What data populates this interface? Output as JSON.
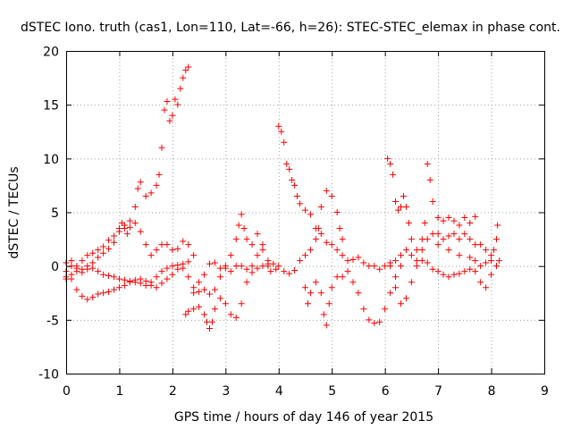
{
  "chart_data": {
    "type": "scatter",
    "title": "dSTEC Iono. truth (cas1, Lon=110, Lat=-66, h=26): STEC-STEC_elemax in phase cont.",
    "xlabel": "GPS time / hours of day 146 of year 2015",
    "ylabel": "dSTEC  / TECUs",
    "xlim": [
      0,
      9
    ],
    "ylim": [
      -10,
      20
    ],
    "xticks": [
      "0",
      "1",
      "2",
      "3",
      "4",
      "5",
      "6",
      "7",
      "8",
      "9"
    ],
    "yticks": [
      "-10",
      "-5",
      "0",
      "5",
      "10",
      "15",
      "20"
    ],
    "grid": true,
    "marker": "+",
    "color": "#ff0000",
    "series": [
      {
        "points": [
          [
            0.0,
            -0.5
          ],
          [
            0.1,
            -1.2
          ],
          [
            0.2,
            -2.2
          ],
          [
            0.3,
            -2.8
          ],
          [
            0.4,
            -3.1
          ],
          [
            0.5,
            -2.9
          ],
          [
            0.6,
            -2.6
          ],
          [
            0.7,
            -2.5
          ],
          [
            0.8,
            -2.4
          ],
          [
            0.9,
            -2.2
          ],
          [
            1.0,
            -2.0
          ],
          [
            1.1,
            -1.8
          ],
          [
            1.2,
            -1.5
          ],
          [
            1.3,
            -1.3
          ],
          [
            1.4,
            -1.2
          ],
          [
            1.5,
            -1.4
          ],
          [
            1.6,
            -1.8
          ],
          [
            1.7,
            -2.0
          ],
          [
            1.8,
            -1.6
          ],
          [
            1.9,
            -1.2
          ],
          [
            2.0,
            -0.8
          ],
          [
            2.1,
            -0.3
          ],
          [
            2.2,
            0.2
          ],
          [
            2.3,
            0.4
          ]
        ]
      },
      {
        "points": [
          [
            0.0,
            0.3
          ],
          [
            0.1,
            0.5
          ],
          [
            0.2,
            0.0
          ],
          [
            0.3,
            -0.6
          ],
          [
            0.4,
            -0.3
          ],
          [
            0.5,
            0.3
          ],
          [
            0.6,
            0.8
          ],
          [
            0.7,
            1.2
          ],
          [
            0.8,
            1.6
          ],
          [
            0.9,
            2.2
          ],
          [
            1.0,
            3.2
          ],
          [
            1.05,
            4.0
          ],
          [
            1.1,
            3.5
          ],
          [
            1.15,
            3.0
          ],
          [
            1.2,
            3.6
          ],
          [
            1.3,
            5.5
          ],
          [
            1.35,
            7.2
          ],
          [
            1.4,
            7.8
          ],
          [
            1.5,
            6.5
          ],
          [
            1.6,
            6.8
          ],
          [
            1.7,
            7.5
          ],
          [
            1.75,
            8.5
          ],
          [
            1.8,
            11.0
          ],
          [
            1.85,
            14.5
          ],
          [
            1.9,
            15.3
          ],
          [
            1.95,
            13.5
          ],
          [
            2.0,
            14.0
          ],
          [
            2.05,
            15.5
          ],
          [
            2.1,
            15.0
          ],
          [
            2.15,
            16.5
          ],
          [
            2.2,
            17.5
          ],
          [
            2.25,
            18.2
          ],
          [
            2.3,
            18.5
          ]
        ]
      },
      {
        "points": [
          [
            0.0,
            -1.0
          ],
          [
            0.1,
            0.0
          ],
          [
            0.2,
            -0.2
          ],
          [
            0.3,
            0.5
          ],
          [
            0.4,
            1.0
          ],
          [
            0.5,
            1.2
          ],
          [
            0.6,
            1.5
          ],
          [
            0.7,
            1.8
          ],
          [
            0.8,
            2.4
          ],
          [
            0.9,
            2.8
          ],
          [
            1.0,
            3.5
          ],
          [
            1.1,
            3.8
          ],
          [
            1.2,
            4.2
          ],
          [
            1.3,
            4.0
          ],
          [
            1.4,
            3.2
          ],
          [
            1.5,
            2.0
          ],
          [
            1.6,
            1.0
          ],
          [
            1.7,
            1.5
          ],
          [
            1.8,
            2.0
          ],
          [
            1.9,
            2.0
          ],
          [
            2.0,
            1.5
          ],
          [
            2.1,
            1.6
          ],
          [
            2.2,
            2.3
          ],
          [
            2.3,
            2.0
          ],
          [
            2.4,
            1.0
          ]
        ]
      },
      {
        "points": [
          [
            0.0,
            -1.2
          ],
          [
            0.1,
            -0.8
          ],
          [
            0.2,
            -0.5
          ],
          [
            0.3,
            -0.3
          ],
          [
            0.4,
            0.0
          ],
          [
            0.5,
            -0.2
          ],
          [
            0.6,
            -0.5
          ],
          [
            0.7,
            -0.8
          ],
          [
            0.8,
            -0.9
          ],
          [
            0.9,
            -1.0
          ],
          [
            1.0,
            -1.2
          ],
          [
            1.1,
            -1.3
          ],
          [
            1.2,
            -1.4
          ],
          [
            1.3,
            -1.5
          ],
          [
            1.4,
            -1.6
          ],
          [
            1.5,
            -1.8
          ],
          [
            1.6,
            -1.5
          ],
          [
            1.7,
            -1.0
          ],
          [
            1.8,
            -0.5
          ],
          [
            1.9,
            -0.2
          ],
          [
            2.0,
            0.0
          ],
          [
            2.1,
            0.1
          ],
          [
            2.2,
            -0.2
          ],
          [
            2.3,
            -1.0
          ],
          [
            2.4,
            -2.0
          ]
        ]
      },
      {
        "points": [
          [
            2.25,
            -4.5
          ],
          [
            2.3,
            -4.2
          ],
          [
            2.4,
            -4.0
          ],
          [
            2.5,
            -3.8
          ],
          [
            2.6,
            -4.5
          ],
          [
            2.65,
            -5.2
          ],
          [
            2.7,
            -5.8
          ],
          [
            2.75,
            -5.2
          ],
          [
            2.8,
            -4.0
          ],
          [
            2.9,
            -3.0
          ],
          [
            3.0,
            -3.5
          ],
          [
            3.1,
            -4.5
          ],
          [
            3.2,
            -4.8
          ],
          [
            3.3,
            -3.5
          ],
          [
            3.4,
            -1.5
          ],
          [
            3.5,
            0.0
          ],
          [
            3.6,
            1.0
          ],
          [
            3.7,
            1.5
          ],
          [
            3.8,
            0.5
          ]
        ]
      },
      {
        "points": [
          [
            2.4,
            -2.5
          ],
          [
            2.5,
            -2.4
          ],
          [
            2.6,
            -2.2
          ],
          [
            2.7,
            -2.6
          ],
          [
            2.8,
            -2.2
          ],
          [
            2.9,
            -1.0
          ],
          [
            3.0,
            -0.2
          ],
          [
            3.1,
            1.0
          ],
          [
            3.2,
            2.5
          ],
          [
            3.25,
            3.8
          ],
          [
            3.3,
            4.8
          ],
          [
            3.35,
            3.5
          ],
          [
            3.4,
            2.5
          ],
          [
            3.5,
            2.0
          ],
          [
            3.6,
            3.0
          ],
          [
            3.7,
            2.0
          ],
          [
            3.8,
            0.2
          ]
        ]
      },
      {
        "points": [
          [
            2.5,
            -1.5
          ],
          [
            2.6,
            -0.8
          ],
          [
            2.7,
            0.2
          ],
          [
            2.8,
            0.3
          ],
          [
            2.9,
            -0.2
          ],
          [
            3.0,
            0.0
          ],
          [
            3.1,
            -0.5
          ],
          [
            3.2,
            0.0
          ],
          [
            3.3,
            0.0
          ],
          [
            3.4,
            -0.3
          ],
          [
            3.5,
            -0.6
          ],
          [
            3.6,
            -0.2
          ],
          [
            3.7,
            0.0
          ],
          [
            3.8,
            0.0
          ],
          [
            3.9,
            0.2
          ],
          [
            4.0,
            0.0
          ],
          [
            4.1,
            -0.5
          ],
          [
            4.2,
            -0.7
          ],
          [
            4.3,
            -0.4
          ]
        ]
      },
      {
        "points": [
          [
            3.85,
            -0.5
          ],
          [
            3.95,
            -0.3
          ],
          [
            4.0,
            13.0
          ],
          [
            4.05,
            12.5
          ],
          [
            4.1,
            11.5
          ],
          [
            4.15,
            9.5
          ],
          [
            4.2,
            9.0
          ],
          [
            4.25,
            8.0
          ],
          [
            4.3,
            7.5
          ],
          [
            4.35,
            6.5
          ],
          [
            4.4,
            5.8
          ],
          [
            4.5,
            5.2
          ],
          [
            4.6,
            4.8
          ],
          [
            4.7,
            3.5
          ],
          [
            4.8,
            5.5
          ],
          [
            4.9,
            7.0
          ],
          [
            5.0,
            6.5
          ],
          [
            5.1,
            5.0
          ],
          [
            5.15,
            3.5
          ],
          [
            5.2,
            2.5
          ]
        ]
      },
      {
        "points": [
          [
            4.4,
            0.5
          ],
          [
            4.5,
            1.0
          ],
          [
            4.6,
            1.5
          ],
          [
            4.7,
            2.5
          ],
          [
            4.75,
            3.5
          ],
          [
            4.8,
            3.0
          ],
          [
            4.9,
            2.2
          ],
          [
            5.0,
            2.0
          ],
          [
            5.1,
            1.5
          ],
          [
            5.2,
            1.0
          ],
          [
            5.3,
            0.5
          ],
          [
            5.4,
            0.6
          ],
          [
            5.5,
            0.8
          ],
          [
            5.6,
            0.3
          ],
          [
            5.7,
            0.0
          ],
          [
            5.8,
            0.0
          ],
          [
            5.9,
            -0.3
          ],
          [
            6.0,
            0.0
          ],
          [
            6.1,
            0.3
          ]
        ]
      },
      {
        "points": [
          [
            4.5,
            -2.0
          ],
          [
            4.55,
            -3.5
          ],
          [
            4.6,
            -2.5
          ],
          [
            4.7,
            -1.5
          ],
          [
            4.8,
            -2.5
          ],
          [
            4.85,
            -4.5
          ],
          [
            4.9,
            -5.5
          ],
          [
            4.95,
            -3.5
          ],
          [
            5.0,
            -2.0
          ],
          [
            5.1,
            -1.0
          ],
          [
            5.2,
            -1.0
          ],
          [
            5.3,
            -0.5
          ],
          [
            5.4,
            -1.5
          ],
          [
            5.5,
            -2.5
          ],
          [
            5.6,
            -4.0
          ],
          [
            5.7,
            -5.0
          ],
          [
            5.8,
            -5.3
          ],
          [
            5.9,
            -5.2
          ],
          [
            6.0,
            -4.0
          ],
          [
            6.1,
            -2.5
          ],
          [
            6.2,
            -1.0
          ],
          [
            6.3,
            0.0
          ]
        ]
      },
      {
        "points": [
          [
            6.05,
            10.0
          ],
          [
            6.1,
            9.5
          ],
          [
            6.15,
            8.5
          ],
          [
            6.2,
            6.0
          ],
          [
            6.25,
            5.2
          ],
          [
            6.3,
            5.5
          ],
          [
            6.35,
            6.5
          ],
          [
            6.4,
            5.5
          ],
          [
            6.45,
            4.0
          ],
          [
            6.5,
            2.5
          ],
          [
            6.6,
            1.5
          ],
          [
            6.7,
            2.5
          ],
          [
            6.75,
            4.0
          ],
          [
            6.8,
            9.5
          ],
          [
            6.85,
            8.0
          ],
          [
            6.9,
            6.0
          ],
          [
            7.0,
            4.5
          ],
          [
            7.1,
            4.2
          ],
          [
            7.2,
            4.5
          ],
          [
            7.3,
            4.2
          ],
          [
            7.4,
            3.8
          ],
          [
            7.5,
            4.5
          ],
          [
            7.6,
            4.0
          ],
          [
            7.7,
            4.6
          ]
        ]
      },
      {
        "points": [
          [
            6.1,
            0.0
          ],
          [
            6.2,
            0.5
          ],
          [
            6.3,
            1.0
          ],
          [
            6.4,
            1.5
          ],
          [
            6.5,
            1.0
          ],
          [
            6.6,
            0.5
          ],
          [
            6.7,
            1.5
          ],
          [
            6.8,
            2.5
          ],
          [
            6.9,
            3.0
          ],
          [
            7.0,
            3.0
          ],
          [
            7.1,
            2.5
          ],
          [
            7.2,
            2.8
          ],
          [
            7.3,
            3.0
          ],
          [
            7.4,
            2.5
          ],
          [
            7.5,
            3.0
          ],
          [
            7.6,
            2.5
          ],
          [
            7.7,
            2.0
          ],
          [
            7.8,
            2.0
          ],
          [
            7.9,
            1.5
          ],
          [
            8.0,
            1.0
          ]
        ]
      },
      {
        "points": [
          [
            6.2,
            -2.0
          ],
          [
            6.3,
            -3.5
          ],
          [
            6.4,
            -3.0
          ],
          [
            6.5,
            -1.5
          ],
          [
            6.6,
            0.0
          ],
          [
            6.7,
            0.5
          ],
          [
            6.8,
            0.3
          ],
          [
            6.9,
            -0.3
          ],
          [
            7.0,
            -0.5
          ],
          [
            7.1,
            -0.8
          ],
          [
            7.2,
            -1.0
          ],
          [
            7.3,
            -0.8
          ],
          [
            7.4,
            -0.7
          ],
          [
            7.5,
            -0.5
          ],
          [
            7.6,
            -0.3
          ],
          [
            7.7,
            -0.5
          ],
          [
            7.8,
            -1.5
          ],
          [
            7.9,
            -2.0
          ],
          [
            8.0,
            -0.8
          ],
          [
            8.1,
            0.0
          ]
        ]
      },
      {
        "points": [
          [
            7.0,
            2.0
          ],
          [
            7.2,
            1.5
          ],
          [
            7.4,
            1.0
          ],
          [
            7.6,
            0.8
          ],
          [
            7.7,
            0.5
          ],
          [
            7.8,
            0.0
          ],
          [
            7.9,
            0.3
          ],
          [
            8.0,
            0.5
          ],
          [
            8.05,
            1.5
          ],
          [
            8.1,
            2.5
          ],
          [
            8.12,
            3.8
          ],
          [
            8.15,
            0.5
          ]
        ]
      }
    ]
  }
}
